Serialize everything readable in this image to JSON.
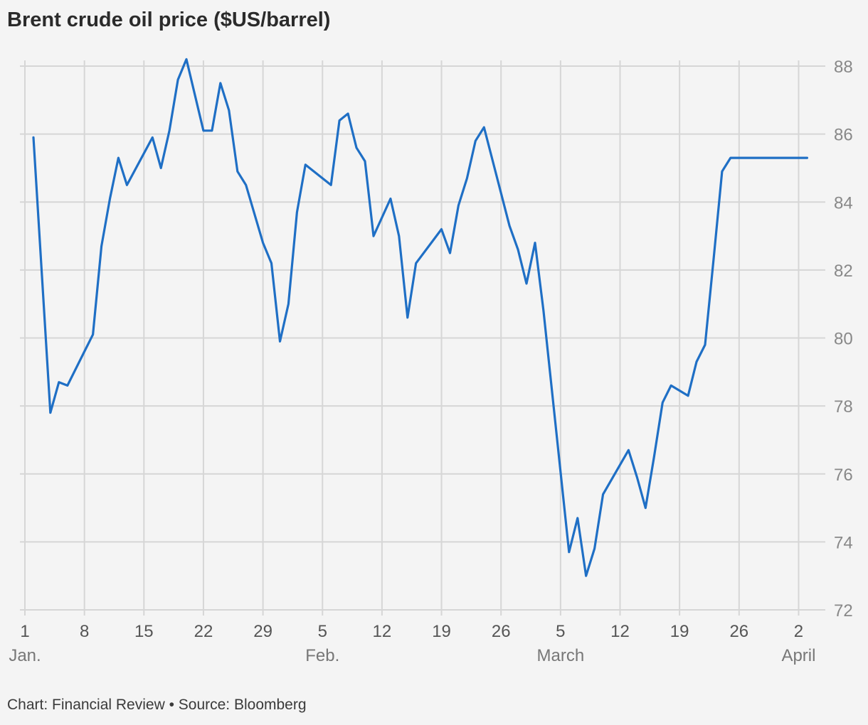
{
  "title": "Brent crude oil price ($US/barrel)",
  "footer": "Chart: Financial Review • Source: Bloomberg",
  "colors": {
    "line": "#1f6fc5",
    "grid": "#d6d6d6",
    "background": "#f4f4f4"
  },
  "chart_data": {
    "type": "line",
    "title": "Brent crude oil price ($US/barrel)",
    "xlabel": "",
    "ylabel": "",
    "ylim": [
      72,
      88
    ],
    "y_ticks": [
      72,
      74,
      76,
      78,
      80,
      82,
      84,
      86,
      88
    ],
    "y_axis_side": "right",
    "grid": true,
    "legend": "none",
    "x_ticks": [
      {
        "day": 0,
        "label": "1",
        "month": "Jan."
      },
      {
        "day": 7,
        "label": "8",
        "month": ""
      },
      {
        "day": 14,
        "label": "15",
        "month": ""
      },
      {
        "day": 21,
        "label": "22",
        "month": ""
      },
      {
        "day": 28,
        "label": "29",
        "month": ""
      },
      {
        "day": 35,
        "label": "5",
        "month": "Feb."
      },
      {
        "day": 42,
        "label": "12",
        "month": ""
      },
      {
        "day": 49,
        "label": "19",
        "month": ""
      },
      {
        "day": 56,
        "label": "26",
        "month": ""
      },
      {
        "day": 63,
        "label": "5",
        "month": "March"
      },
      {
        "day": 70,
        "label": "12",
        "month": ""
      },
      {
        "day": 77,
        "label": "19",
        "month": ""
      },
      {
        "day": 84,
        "label": "26",
        "month": ""
      },
      {
        "day": 91,
        "label": "2",
        "month": "April"
      }
    ],
    "series": [
      {
        "x": [
          1,
          3,
          4,
          5,
          7,
          8,
          9,
          10,
          11,
          12,
          15,
          16,
          17,
          18,
          19,
          21,
          22,
          23,
          24,
          25,
          26,
          28,
          29,
          30,
          31,
          32,
          33,
          36,
          37,
          38,
          39,
          40,
          41,
          43,
          44,
          45,
          46,
          49,
          50,
          51,
          52,
          53,
          54,
          57,
          58,
          59,
          60,
          61,
          64,
          65,
          66,
          67,
          68,
          71,
          72,
          73,
          74,
          75,
          76,
          78,
          79,
          80,
          81,
          82,
          83,
          84,
          85,
          86,
          87,
          88,
          89,
          90,
          91,
          92
        ],
        "y": [
          85.9,
          77.8,
          78.7,
          78.6,
          79.6,
          80.1,
          82.7,
          84.1,
          85.3,
          84.5,
          85.9,
          85.0,
          86.1,
          87.6,
          88.2,
          86.1,
          86.1,
          87.5,
          86.7,
          84.9,
          84.5,
          82.8,
          82.2,
          79.9,
          81.0,
          83.7,
          85.1,
          84.5,
          86.4,
          86.6,
          85.6,
          85.2,
          83.0,
          84.1,
          83.0,
          80.6,
          82.2,
          83.2,
          82.5,
          83.9,
          84.7,
          85.8,
          86.2,
          83.3,
          82.6,
          81.6,
          82.8,
          80.8,
          73.7,
          74.7,
          73.0,
          73.8,
          75.4,
          76.7,
          75.9,
          75.0,
          76.5,
          78.1,
          78.6,
          78.3,
          79.3,
          79.8,
          82.3,
          84.9,
          85.3,
          85.3,
          85.3,
          85.3,
          85.3,
          85.3,
          85.3,
          85.3,
          85.3,
          85.3
        ]
      }
    ]
  }
}
